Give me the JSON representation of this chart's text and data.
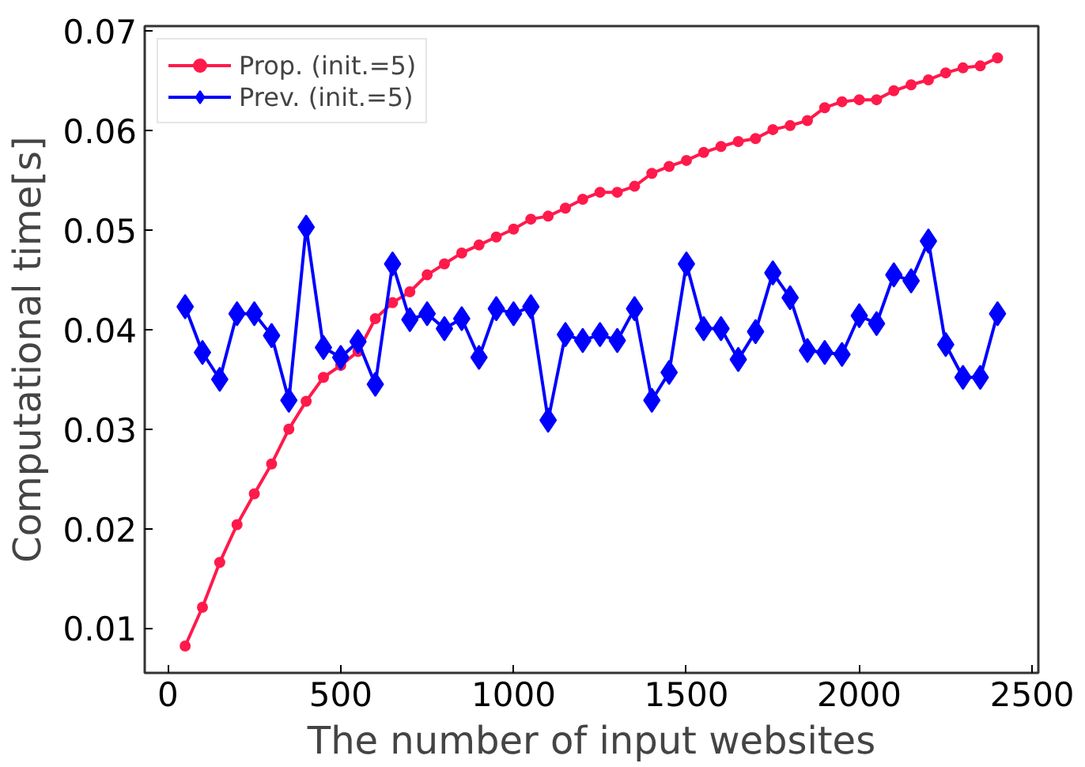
{
  "chart_data": {
    "type": "line",
    "xlabel": "The number of input websites",
    "ylabel": "Computational time[s]",
    "x": [
      50,
      100,
      150,
      200,
      250,
      300,
      350,
      400,
      450,
      500,
      550,
      600,
      650,
      700,
      750,
      800,
      850,
      900,
      950,
      1000,
      1050,
      1100,
      1150,
      1200,
      1250,
      1300,
      1350,
      1400,
      1450,
      1500,
      1550,
      1600,
      1650,
      1700,
      1750,
      1800,
      1850,
      1900,
      1950,
      2000,
      2050,
      2100,
      2150,
      2200,
      2250,
      2300,
      2350,
      2400
    ],
    "series": [
      {
        "name": "Prop. (init.=5)",
        "color": "#ff1a4b",
        "marker": "circle",
        "values": [
          0.0082,
          0.0121,
          0.0166,
          0.0204,
          0.0235,
          0.0265,
          0.03,
          0.0328,
          0.0352,
          0.0364,
          0.0378,
          0.0411,
          0.0427,
          0.0438,
          0.0455,
          0.0466,
          0.0477,
          0.0485,
          0.0493,
          0.0501,
          0.0511,
          0.0514,
          0.0522,
          0.0531,
          0.0538,
          0.0538,
          0.0544,
          0.0557,
          0.0564,
          0.057,
          0.0578,
          0.0584,
          0.0589,
          0.0592,
          0.0601,
          0.0605,
          0.061,
          0.0623,
          0.0629,
          0.0631,
          0.0631,
          0.064,
          0.0646,
          0.0651,
          0.0658,
          0.0663,
          0.0665,
          0.0673
        ]
      },
      {
        "name": "Prev. (init.=5)",
        "color": "#0000ff",
        "marker": "diamond",
        "values": [
          0.0423,
          0.0377,
          0.035,
          0.0416,
          0.0416,
          0.0394,
          0.0329,
          0.0503,
          0.0382,
          0.0372,
          0.0388,
          0.0345,
          0.0466,
          0.041,
          0.0416,
          0.0401,
          0.0411,
          0.0372,
          0.0421,
          0.0416,
          0.0423,
          0.0309,
          0.0395,
          0.0389,
          0.0395,
          0.0389,
          0.0421,
          0.0329,
          0.0357,
          0.0466,
          0.0401,
          0.0401,
          0.037,
          0.0398,
          0.0457,
          0.0432,
          0.0379,
          0.0377,
          0.0375,
          0.0414,
          0.0406,
          0.0455,
          0.0449,
          0.0489,
          0.0385,
          0.0352,
          0.0352,
          0.0416
        ]
      }
    ],
    "xlim": [
      -67,
      2518
    ],
    "xticks": [
      0,
      500,
      1000,
      1500,
      2000,
      2500
    ],
    "ylim": [
      0.0055,
      0.0705
    ],
    "yticks": [
      {
        "value": 0.01,
        "label": "0.01"
      },
      {
        "value": 0.02,
        "label": "0.02"
      },
      {
        "value": 0.03,
        "label": "0.03"
      },
      {
        "value": 0.04,
        "label": "0.04"
      },
      {
        "value": 0.05,
        "label": "0.05"
      },
      {
        "value": 0.06,
        "label": "0.06"
      },
      {
        "value": 0.07,
        "label": "0.07"
      }
    ],
    "legend": "top left",
    "grid": false,
    "line_style": "solid"
  }
}
